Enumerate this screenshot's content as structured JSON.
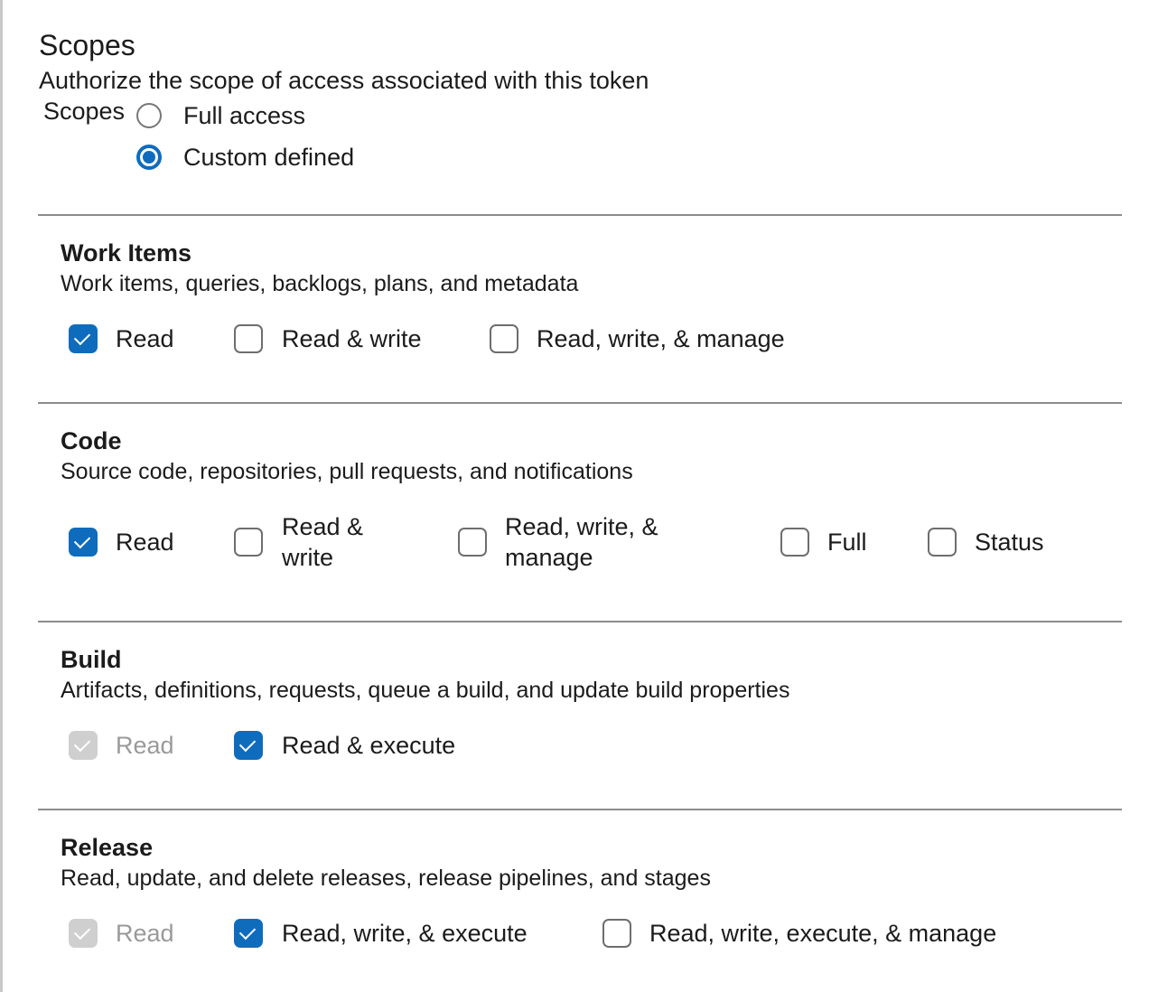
{
  "header": {
    "title": "Scopes",
    "subtitle": "Authorize the scope of access associated with this token",
    "field_label": "Scopes",
    "radios": [
      {
        "label": "Full access",
        "selected": false
      },
      {
        "label": "Custom defined",
        "selected": true
      }
    ]
  },
  "sections": [
    {
      "title": "Work Items",
      "description": "Work items, queries, backlogs, plans, and metadata",
      "options": [
        {
          "label": "Read",
          "checked": true
        },
        {
          "label": "Read & write",
          "checked": false
        },
        {
          "label": "Read, write, & manage",
          "checked": false
        }
      ]
    },
    {
      "title": "Code",
      "description": "Source code, repositories, pull requests, and notifications",
      "options": [
        {
          "label": "Read",
          "checked": true
        },
        {
          "label": "Read & write",
          "checked": false
        },
        {
          "label": "Read, write, & manage",
          "checked": false
        },
        {
          "label": "Full",
          "checked": false
        },
        {
          "label": "Status",
          "checked": false
        }
      ]
    },
    {
      "title": "Build",
      "description": "Artifacts, definitions, requests, queue a build, and update build properties",
      "options": [
        {
          "label": "Read",
          "checked": true,
          "disabled": true
        },
        {
          "label": "Read & execute",
          "checked": true
        }
      ]
    },
    {
      "title": "Release",
      "description": "Read, update, and delete releases, release pipelines, and stages",
      "options": [
        {
          "label": "Read",
          "checked": true,
          "disabled": true
        },
        {
          "label": "Read, write, & execute",
          "checked": true
        },
        {
          "label": "Read, write, execute, & manage",
          "checked": false
        }
      ]
    }
  ],
  "colors": {
    "accent": "#0f6cbd",
    "disabled": "#cfcfcf"
  }
}
